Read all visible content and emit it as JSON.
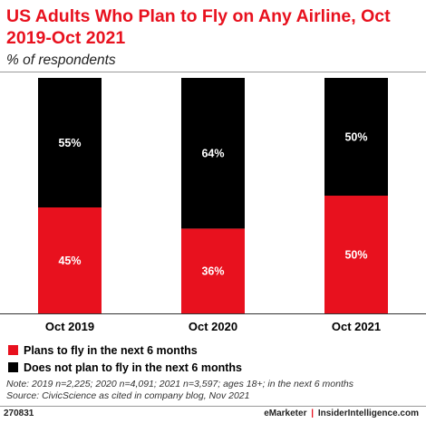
{
  "header": {
    "title": "US Adults Who Plan to Fly on Any Airline, Oct 2019-Oct 2021",
    "subtitle": "% of respondents"
  },
  "chart_data": {
    "type": "bar",
    "stacked": true,
    "categories": [
      "Oct 2019",
      "Oct 2020",
      "Oct 2021"
    ],
    "series": [
      {
        "name": "Plans to fly in the next 6 months",
        "values": [
          45,
          36,
          50
        ],
        "color": "#e8111e"
      },
      {
        "name": "Does not plan to fly in the next 6 months",
        "values": [
          55,
          64,
          50
        ],
        "color": "#000000"
      }
    ],
    "value_suffix": "%",
    "ylim": [
      0,
      100
    ],
    "grid": false,
    "legend_position": "bottom-left"
  },
  "notes": {
    "line1": "Note: 2019 n=2,225; 2020 n=4,091; 2021 n=3,597; ages 18+; in the next 6 months",
    "line2": "Source: CivicScience as cited in company blog, Nov 2021"
  },
  "footer": {
    "id": "270831",
    "brand1": "eMarketer",
    "separator": "|",
    "brand2": "InsiderIntelligence.com"
  }
}
